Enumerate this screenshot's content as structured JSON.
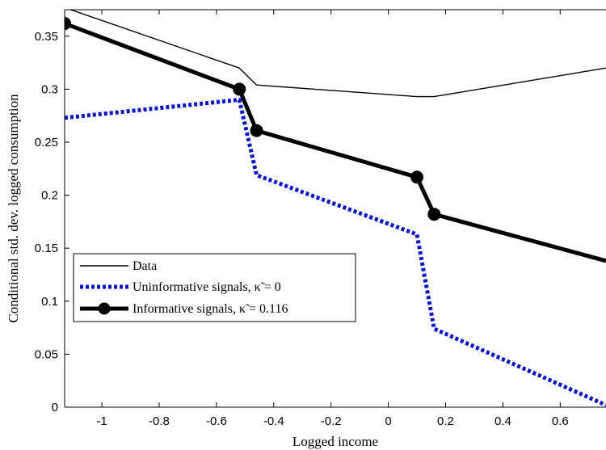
{
  "chart_data": {
    "type": "line",
    "title": "",
    "xlabel": "Logged income",
    "ylabel": "Conditional std. dev. logged consumption",
    "xlim": [
      -1.13,
      0.76
    ],
    "ylim": [
      0,
      0.375
    ],
    "xticks": [
      -1,
      -0.8,
      -0.6,
      -0.4,
      -0.2,
      0,
      0.2,
      0.4,
      0.6
    ],
    "xtick_labels": [
      "-1",
      "-0.8",
      "-0.6",
      "-0.4",
      "-0.2",
      "0",
      "0.2",
      "0.4",
      "0.6"
    ],
    "yticks": [
      0,
      0.05,
      0.1,
      0.15,
      0.2,
      0.25,
      0.3,
      0.35
    ],
    "ytick_labels": [
      "0",
      "0.05",
      "0.1",
      "0.15",
      "0.2",
      "0.25",
      "0.3",
      "0.35"
    ],
    "grid": false,
    "legend_position": "bottom-left",
    "series": [
      {
        "name": "Data",
        "style": "thin-solid",
        "color": "#000000",
        "x": [
          -1.13,
          -0.52,
          -0.46,
          0.1,
          0.16,
          0.76
        ],
        "y": [
          0.377,
          0.32,
          0.304,
          0.293,
          0.293,
          0.32
        ]
      },
      {
        "name": "Uninformative signals, κ̃ = 0",
        "style": "dotted",
        "color": "#0a14c8",
        "x": [
          -1.13,
          -0.52,
          -0.46,
          0.1,
          0.16,
          0.76
        ],
        "y": [
          0.273,
          0.29,
          0.219,
          0.163,
          0.074,
          0.002
        ]
      },
      {
        "name": "Informative signals, κ̃ = 0.116",
        "style": "thick-solid-markers",
        "color": "#000000",
        "x": [
          -1.13,
          -0.52,
          -0.46,
          0.1,
          0.16,
          0.76
        ],
        "y": [
          0.362,
          0.3,
          0.261,
          0.217,
          0.182,
          0.138
        ],
        "markers": [
          true,
          true,
          true,
          true,
          true,
          false
        ]
      }
    ]
  }
}
